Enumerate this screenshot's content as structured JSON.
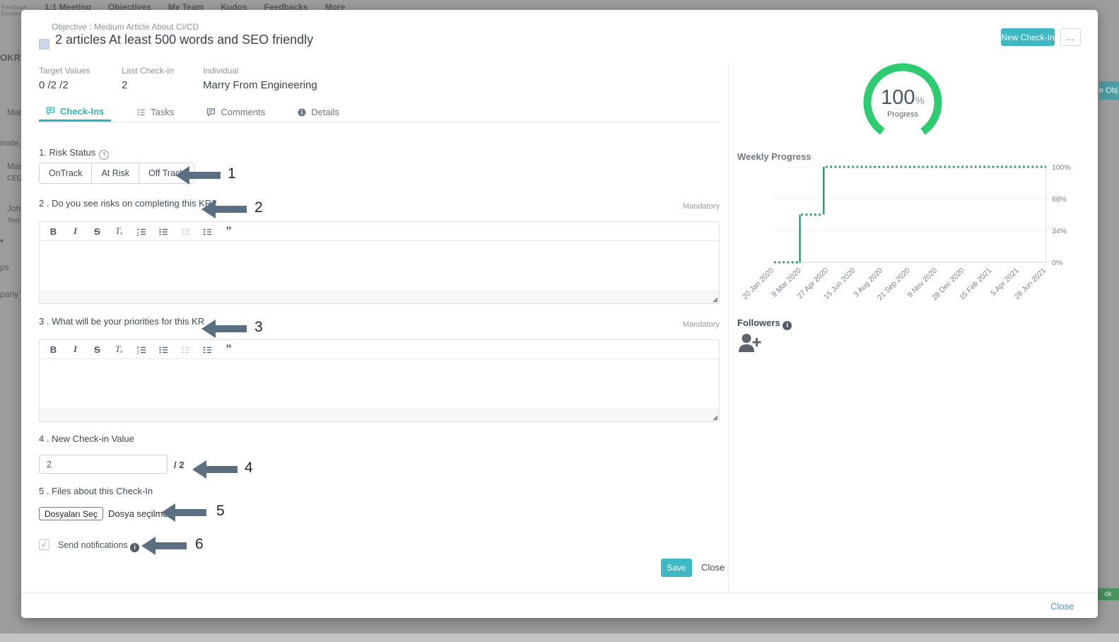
{
  "background": {
    "logo_line1": "Feedback",
    "logo_line2": "Excellence",
    "nav_items": [
      "1:1 Meeting",
      "Objectives",
      "My Team",
      "Kudos",
      "Feedbacks",
      "More"
    ],
    "left_fragments": {
      "okr_header": "OKR C",
      "name1": "Mar",
      "teammates": "mate",
      "name2": "Mar",
      "role2": "CEO",
      "name3": "John",
      "role3": "Test",
      "groups": "ps",
      "company": "pany"
    },
    "right_fragments": {
      "create_objective": "e Obj",
      "view": "w",
      "status_badge": "ck"
    }
  },
  "icons": {
    "help": "?",
    "info": "i",
    "check": "✓",
    "resize": "◢",
    "caret_down": "▾"
  },
  "modal": {
    "objective_label": "Objective : Medium Article About Ci/CD",
    "title": "2 articles At least 500 words and SEO friendly",
    "new_checkin_button": "New Check-In",
    "more_button": "...",
    "meta": {
      "target_values_label": "Target Values",
      "target_values": "0 /2 /2",
      "last_checkin_label": "Last Check-In",
      "last_checkin": "2",
      "individual_label": "Individual",
      "individual": "Marry From Engineering"
    },
    "tabs": [
      {
        "label": "Check-Ins",
        "active": true
      },
      {
        "label": "Tasks",
        "active": false
      },
      {
        "label": "Comments",
        "active": false
      },
      {
        "label": "Details",
        "active": false
      }
    ],
    "editor_toolbar": {
      "bold": "B",
      "italic": "I",
      "strikethrough": "S",
      "remove_format": "Tₓ",
      "blockquote": "”"
    },
    "form": {
      "q1_label": "1. Risk Status",
      "risk_options": [
        "OnTrack",
        "At Risk",
        "Off Track"
      ],
      "q2_label": "2 . Do you see risks on completing this KR?",
      "q3_label": "3 . What will be your priorities for this KR",
      "mandatory": "Mandatory",
      "q4_label": "4 . New Check-in Value",
      "checkin_value": "2",
      "checkin_target_suffix": "/ 2",
      "q5_label": "5 . Files about this Check-In",
      "file_button": "Dosyaları Seç",
      "file_status": "Dosya seçilmedi",
      "send_notifications": "Send notifications",
      "save_button": "Save",
      "close_button": "Close"
    },
    "close_link": "Close"
  },
  "right_panel": {
    "progress_value": "100",
    "progress_unit": "%",
    "progress_caption": "Progress",
    "progress_ring_color": "#2ecc71",
    "weekly_title": "Weekly Progress",
    "followers_label": "Followers"
  },
  "annotations": {
    "n1": "1",
    "n2": "2",
    "n3": "3",
    "n4": "4",
    "n5": "5",
    "n6": "6"
  },
  "chart_data": {
    "type": "line",
    "title": "Weekly Progress",
    "style": "stepped line with square dotted markers",
    "color": "#2e9273",
    "legend": "none",
    "grid": "horizontal",
    "x_labels": [
      "20 Jan 2020",
      "9 Mar 2020",
      "27 Apr 2020",
      "15 Jun 2020",
      "3 Aug 2020",
      "21 Sep 2020",
      "9 Nov 2020",
      "28 Dec 2020",
      "15 Feb 2021",
      "5 Apr 2021",
      "28 Jun 2021"
    ],
    "y_ticks": [
      "100%",
      "68%",
      "34%",
      "0%"
    ],
    "ylim": [
      0,
      100
    ],
    "series": [
      {
        "name": "Progress %",
        "points": [
          {
            "x": "20 Jan 2020",
            "y": 0
          },
          {
            "x": "2 Mar 2020",
            "y": 0
          },
          {
            "x": "9 Mar 2020",
            "y": 50
          },
          {
            "x": "20 Apr 2020",
            "y": 50
          },
          {
            "x": "27 Apr 2020",
            "y": 100
          },
          {
            "x": "28 Jun 2021",
            "y": 100
          }
        ]
      }
    ],
    "segments": [
      {
        "start_frac": 0.0,
        "end_frac": 0.09,
        "value": 0
      },
      {
        "start_frac": 0.1,
        "end_frac": 0.175,
        "value": 50
      },
      {
        "start_frac": 0.19,
        "end_frac": 1.0,
        "value": 100
      }
    ]
  }
}
